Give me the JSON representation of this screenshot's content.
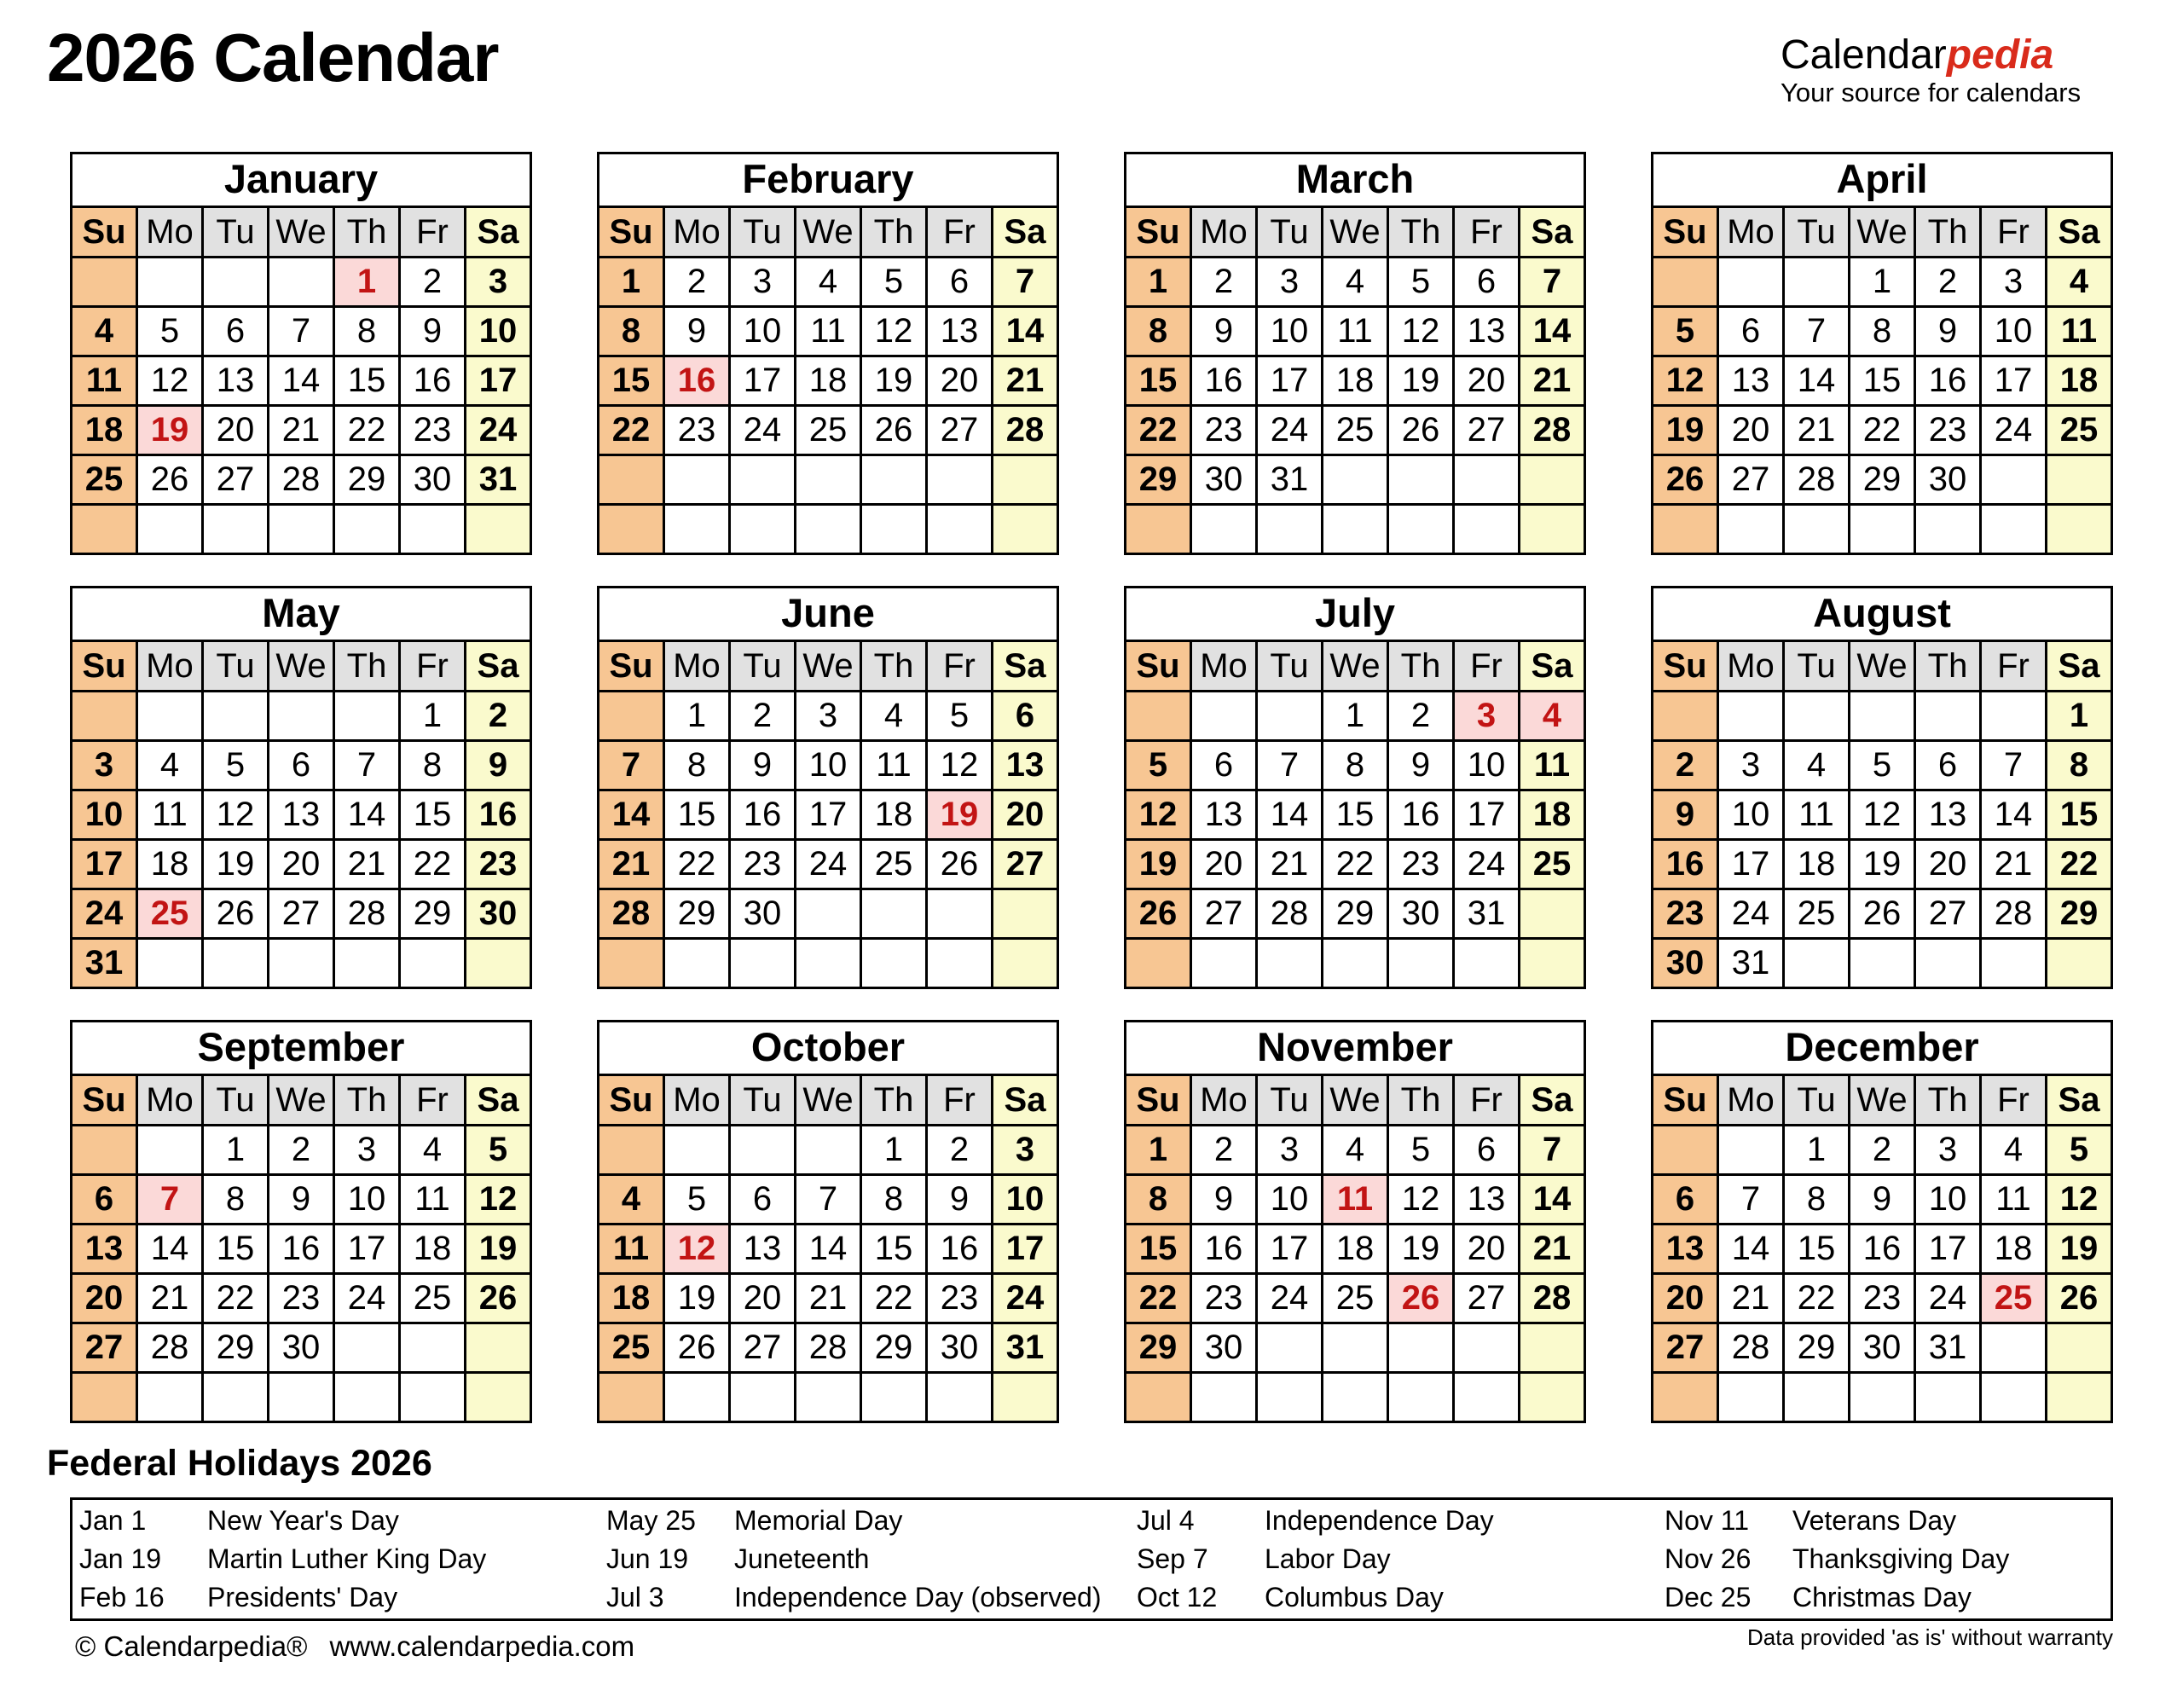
{
  "page": {
    "title": "2026 Calendar",
    "logo": {
      "part1": "Calendar",
      "part2": "pedia",
      "tagline": "Your source for calendars"
    },
    "footer": {
      "copyright": "© Calendarpedia®",
      "website": "www.calendarpedia.com",
      "disclaimer": "Data provided 'as is' without warranty"
    }
  },
  "day_headers": [
    "Su",
    "Mo",
    "Tu",
    "We",
    "Th",
    "Fr",
    "Sa"
  ],
  "months": [
    {
      "name": "January",
      "holidays": [
        1,
        19
      ],
      "cells": [
        null,
        null,
        null,
        null,
        1,
        2,
        3,
        4,
        5,
        6,
        7,
        8,
        9,
        10,
        11,
        12,
        13,
        14,
        15,
        16,
        17,
        18,
        19,
        20,
        21,
        22,
        23,
        24,
        25,
        26,
        27,
        28,
        29,
        30,
        31,
        null,
        null,
        null,
        null,
        null,
        null,
        null
      ]
    },
    {
      "name": "February",
      "holidays": [
        16
      ],
      "cells": [
        1,
        2,
        3,
        4,
        5,
        6,
        7,
        8,
        9,
        10,
        11,
        12,
        13,
        14,
        15,
        16,
        17,
        18,
        19,
        20,
        21,
        22,
        23,
        24,
        25,
        26,
        27,
        28,
        null,
        null,
        null,
        null,
        null,
        null,
        null,
        null,
        null,
        null,
        null,
        null,
        null,
        null
      ]
    },
    {
      "name": "March",
      "holidays": [],
      "cells": [
        1,
        2,
        3,
        4,
        5,
        6,
        7,
        8,
        9,
        10,
        11,
        12,
        13,
        14,
        15,
        16,
        17,
        18,
        19,
        20,
        21,
        22,
        23,
        24,
        25,
        26,
        27,
        28,
        29,
        30,
        31,
        null,
        null,
        null,
        null,
        null,
        null,
        null,
        null,
        null,
        null,
        null
      ]
    },
    {
      "name": "April",
      "holidays": [],
      "cells": [
        null,
        null,
        null,
        1,
        2,
        3,
        4,
        5,
        6,
        7,
        8,
        9,
        10,
        11,
        12,
        13,
        14,
        15,
        16,
        17,
        18,
        19,
        20,
        21,
        22,
        23,
        24,
        25,
        26,
        27,
        28,
        29,
        30,
        null,
        null,
        null,
        null,
        null,
        null,
        null,
        null,
        null
      ]
    },
    {
      "name": "May",
      "holidays": [
        25
      ],
      "cells": [
        null,
        null,
        null,
        null,
        null,
        1,
        2,
        3,
        4,
        5,
        6,
        7,
        8,
        9,
        10,
        11,
        12,
        13,
        14,
        15,
        16,
        17,
        18,
        19,
        20,
        21,
        22,
        23,
        24,
        25,
        26,
        27,
        28,
        29,
        30,
        31,
        null,
        null,
        null,
        null,
        null,
        null
      ]
    },
    {
      "name": "June",
      "holidays": [
        19
      ],
      "cells": [
        null,
        1,
        2,
        3,
        4,
        5,
        6,
        7,
        8,
        9,
        10,
        11,
        12,
        13,
        14,
        15,
        16,
        17,
        18,
        19,
        20,
        21,
        22,
        23,
        24,
        25,
        26,
        27,
        28,
        29,
        30,
        null,
        null,
        null,
        null,
        null,
        null,
        null,
        null,
        null,
        null,
        null
      ]
    },
    {
      "name": "July",
      "holidays": [
        3,
        4
      ],
      "cells": [
        null,
        null,
        null,
        1,
        2,
        3,
        4,
        5,
        6,
        7,
        8,
        9,
        10,
        11,
        12,
        13,
        14,
        15,
        16,
        17,
        18,
        19,
        20,
        21,
        22,
        23,
        24,
        25,
        26,
        27,
        28,
        29,
        30,
        31,
        null,
        null,
        null,
        null,
        null,
        null,
        null,
        null
      ]
    },
    {
      "name": "August",
      "holidays": [],
      "cells": [
        null,
        null,
        null,
        null,
        null,
        null,
        1,
        2,
        3,
        4,
        5,
        6,
        7,
        8,
        9,
        10,
        11,
        12,
        13,
        14,
        15,
        16,
        17,
        18,
        19,
        20,
        21,
        22,
        23,
        24,
        25,
        26,
        27,
        28,
        29,
        30,
        31,
        null,
        null,
        null,
        null,
        null
      ]
    },
    {
      "name": "September",
      "holidays": [
        7
      ],
      "cells": [
        null,
        null,
        1,
        2,
        3,
        4,
        5,
        6,
        7,
        8,
        9,
        10,
        11,
        12,
        13,
        14,
        15,
        16,
        17,
        18,
        19,
        20,
        21,
        22,
        23,
        24,
        25,
        26,
        27,
        28,
        29,
        30,
        null,
        null,
        null,
        null,
        null,
        null,
        null,
        null,
        null,
        null
      ]
    },
    {
      "name": "October",
      "holidays": [
        12
      ],
      "cells": [
        null,
        null,
        null,
        null,
        1,
        2,
        3,
        4,
        5,
        6,
        7,
        8,
        9,
        10,
        11,
        12,
        13,
        14,
        15,
        16,
        17,
        18,
        19,
        20,
        21,
        22,
        23,
        24,
        25,
        26,
        27,
        28,
        29,
        30,
        31,
        null,
        null,
        null,
        null,
        null,
        null,
        null
      ]
    },
    {
      "name": "November",
      "holidays": [
        11,
        26
      ],
      "cells": [
        1,
        2,
        3,
        4,
        5,
        6,
        7,
        8,
        9,
        10,
        11,
        12,
        13,
        14,
        15,
        16,
        17,
        18,
        19,
        20,
        21,
        22,
        23,
        24,
        25,
        26,
        27,
        28,
        29,
        30,
        null,
        null,
        null,
        null,
        null,
        null,
        null,
        null,
        null,
        null,
        null,
        null
      ]
    },
    {
      "name": "December",
      "holidays": [
        25
      ],
      "cells": [
        null,
        null,
        1,
        2,
        3,
        4,
        5,
        6,
        7,
        8,
        9,
        10,
        11,
        12,
        13,
        14,
        15,
        16,
        17,
        18,
        19,
        20,
        21,
        22,
        23,
        24,
        25,
        26,
        27,
        28,
        29,
        30,
        31,
        null,
        null,
        null,
        null,
        null,
        null,
        null,
        null,
        null
      ]
    }
  ],
  "holidays_section": {
    "heading": "Federal Holidays 2026",
    "columns": [
      [
        {
          "date": "Jan 1",
          "name": "New Year's Day"
        },
        {
          "date": "Jan 19",
          "name": "Martin Luther King Day"
        },
        {
          "date": "Feb 16",
          "name": "Presidents' Day"
        }
      ],
      [
        {
          "date": "May 25",
          "name": "Memorial Day"
        },
        {
          "date": "Jun 19",
          "name": "Juneteenth"
        },
        {
          "date": "Jul 3",
          "name": "Independence Day (observed)"
        }
      ],
      [
        {
          "date": "Jul 4",
          "name": "Independence Day"
        },
        {
          "date": "Sep 7",
          "name": "Labor Day"
        },
        {
          "date": "Oct 12",
          "name": "Columbus Day"
        }
      ],
      [
        {
          "date": "Nov 11",
          "name": "Veterans Day"
        },
        {
          "date": "Nov 26",
          "name": "Thanksgiving Day"
        },
        {
          "date": "Dec 25",
          "name": "Christmas Day"
        }
      ]
    ]
  },
  "colors": {
    "sunday_column": "#F7C693",
    "saturday_column": "#FAFACD",
    "weekday_header": "#E1E1E1",
    "holiday_cell": "#FBD9D8",
    "holiday_text": "#C21414",
    "grid_line": "#000000",
    "logo_red": "#D92B1B"
  }
}
